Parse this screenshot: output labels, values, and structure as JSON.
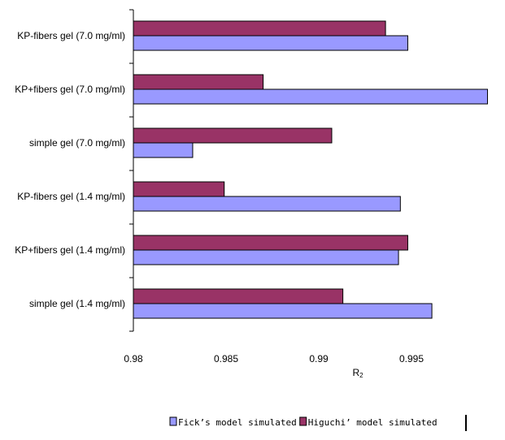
{
  "chart_data": {
    "type": "bar",
    "orientation": "horizontal",
    "categories": [
      "KP-fibers gel (7.0 mg/ml)",
      "KP+fibers gel (7.0 mg/ml)",
      "simple gel (7.0 mg/ml)",
      "KP-fibers gel (1.4 mg/ml)",
      "KP+fibers gel (1.4 mg/ml)",
      "simple gel (1.4 mg/ml)"
    ],
    "series": [
      {
        "name": "Higuchi’ model simulated",
        "color": "#993366",
        "values": [
          0.9936,
          0.987,
          0.9907,
          0.9849,
          0.9948,
          0.9913
        ]
      },
      {
        "name": "Fick’s model simulated",
        "color": "#9999ff",
        "values": [
          0.9948,
          0.9991,
          0.9832,
          0.9944,
          0.9943,
          0.9961
        ]
      }
    ],
    "xlabel": "R",
    "xlabel_sub": "2",
    "xlim": [
      0.98,
      1.0
    ],
    "xticks": [
      "0.98",
      "0.985",
      "0.99",
      "0.995"
    ],
    "xtick_values": [
      0.98,
      0.985,
      0.99,
      0.995
    ],
    "legend_order": [
      "Fick’s model simulated",
      "Higuchi’ model simulated"
    ],
    "legend_position": "bottom",
    "grid": false
  }
}
